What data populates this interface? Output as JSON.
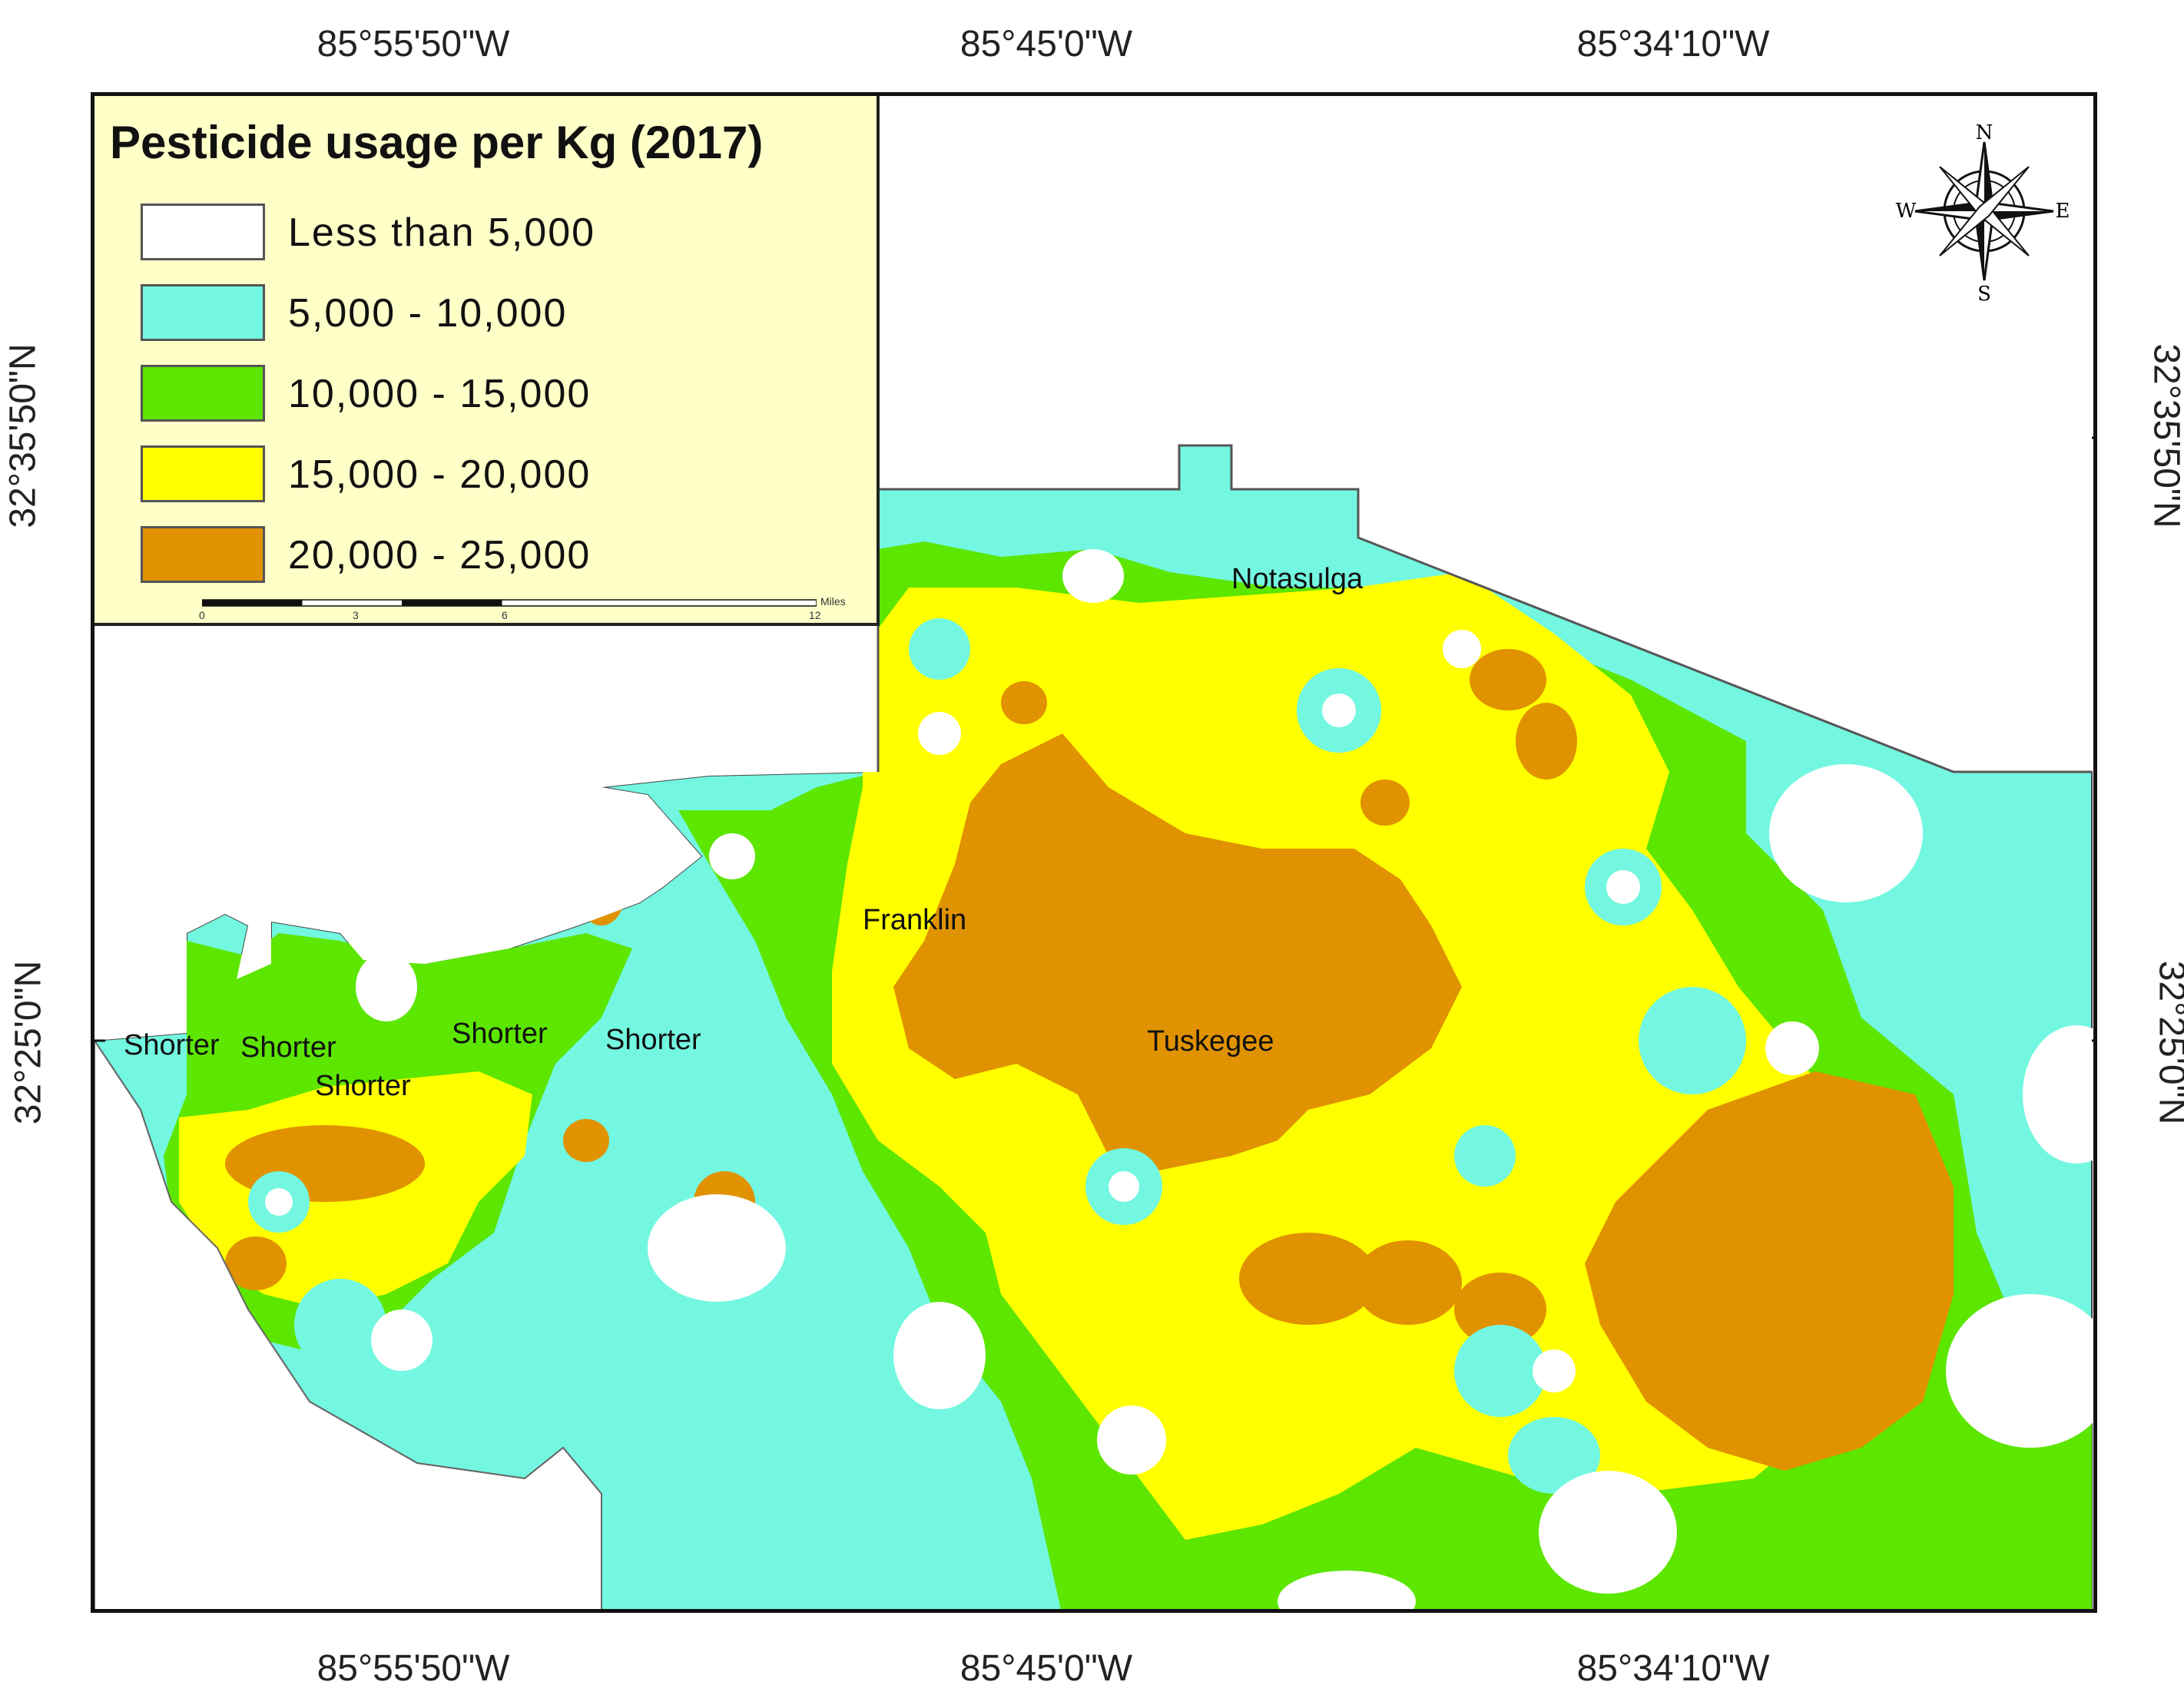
{
  "legend": {
    "title": "Pesticide usage per Kg (2017)",
    "classes": [
      {
        "label": "Less than 5,000",
        "color": "#ffffff"
      },
      {
        "label": "5,000 - 10,000",
        "color": "#73f7e0"
      },
      {
        "label": "10,000 - 15,000",
        "color": "#5ce600"
      },
      {
        "label": "15,000 - 20,000",
        "color": "#ffff00"
      },
      {
        "label": "20,000 - 25,000",
        "color": "#e09200"
      }
    ],
    "scale": {
      "ticks": [
        "0",
        "3",
        "6",
        "12"
      ],
      "unit": "Miles"
    }
  },
  "longitudes": [
    "85°55'50\"W",
    "85°45'0\"W",
    "85°34'10\"W"
  ],
  "latitudes": [
    "32°35'50\"N",
    "32°25'0\"N"
  ],
  "compass": {
    "n": "N",
    "s": "S",
    "e": "E",
    "w": "W"
  },
  "places": [
    {
      "name": "Notasulga"
    },
    {
      "name": "Franklin"
    },
    {
      "name": "Tuskegee"
    },
    {
      "name": "Shorter"
    },
    {
      "name": "Shorter"
    },
    {
      "name": "Shorter"
    },
    {
      "name": "Shorter"
    },
    {
      "name": "Shorter"
    }
  ]
}
